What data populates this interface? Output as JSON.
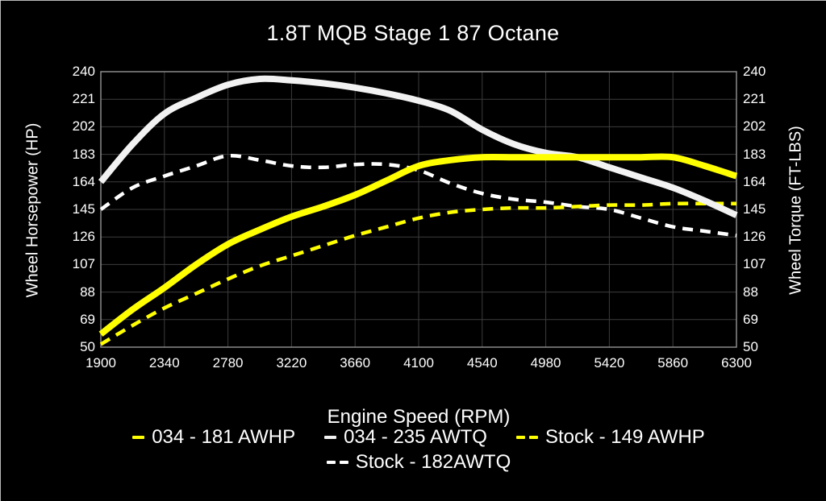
{
  "chart_data": {
    "type": "line",
    "title": "1.8T MQB Stage 1 87 Octane",
    "xlabel": "Engine Speed (RPM)",
    "ylabel_left": "Wheel Horsepower (HP)",
    "ylabel_right": "Wheel Torque (FT-LBS)",
    "xlim": [
      1900,
      6300
    ],
    "ylim": [
      50,
      240
    ],
    "x_ticks": [
      1900,
      2340,
      2780,
      3220,
      3660,
      4100,
      4540,
      4980,
      5420,
      5860,
      6300
    ],
    "y_ticks": [
      240,
      221,
      202,
      183,
      164,
      145,
      126,
      107,
      88,
      69,
      50
    ],
    "grid": true,
    "legend_position": "bottom",
    "colors": {
      "background": "#000000",
      "grid": "#3d3d3d",
      "frame": "#8a8a8a",
      "text": "#ffffff",
      "accent_yellow": "#ffff00",
      "accent_white": "#f2f2f2"
    },
    "x": [
      1900,
      2120,
      2340,
      2560,
      2780,
      3000,
      3220,
      3440,
      3660,
      3880,
      4100,
      4320,
      4540,
      4760,
      4980,
      5200,
      5420,
      5640,
      5860,
      6080,
      6300
    ],
    "series": [
      {
        "key": "tuned-awhp",
        "name": "034 - 181 AWHP",
        "color": "#ffff00",
        "style": "solid",
        "width": 8,
        "values": [
          59,
          76,
          91,
          107,
          121,
          131,
          140,
          147,
          155,
          165,
          175,
          179,
          181,
          181,
          181,
          181,
          181,
          181,
          181,
          175,
          168
        ]
      },
      {
        "key": "tuned-awtq",
        "name": "034 - 235 AWTQ",
        "color": "#f2f2f2",
        "style": "solid",
        "width": 8,
        "values": [
          164,
          190,
          211,
          222,
          231,
          235,
          234,
          232,
          229,
          225,
          220,
          213,
          200,
          190,
          184,
          181,
          174,
          167,
          160,
          151,
          141
        ]
      },
      {
        "key": "stock-awhp",
        "name": "Stock - 149 AWHP",
        "color": "#ffff00",
        "style": "dashed",
        "width": 4.5,
        "values": [
          52,
          65,
          77,
          87,
          97,
          106,
          113,
          120,
          127,
          133,
          139,
          143,
          145,
          146,
          146,
          147,
          148,
          148,
          149,
          149,
          149
        ]
      },
      {
        "key": "stock-awtq",
        "name": "Stock - 182AWTQ",
        "color": "#ffffff",
        "style": "dashed",
        "width": 4.5,
        "values": [
          145,
          160,
          168,
          175,
          182,
          179,
          175,
          174,
          176,
          176,
          172,
          163,
          156,
          152,
          150,
          147,
          145,
          139,
          133,
          130,
          127
        ]
      }
    ],
    "legend_rows": [
      [
        "tuned-awhp",
        "tuned-awtq",
        "stock-awhp"
      ],
      [
        "stock-awtq"
      ]
    ]
  }
}
